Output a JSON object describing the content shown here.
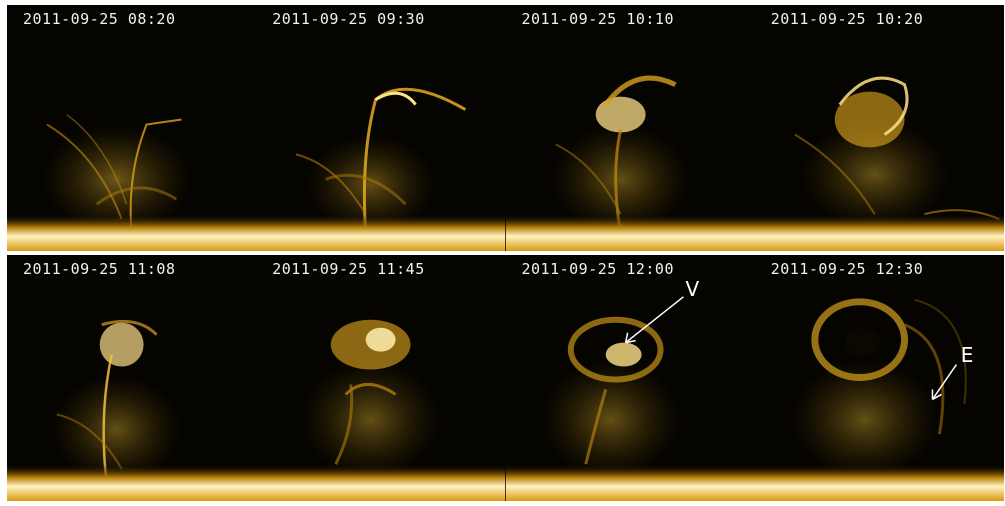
{
  "panels": [
    {
      "timestamp": "2011-09-25 08:20",
      "label": ""
    },
    {
      "timestamp": "2011-09-25 09:30",
      "label": ""
    },
    {
      "timestamp": "2011-09-25 10:10",
      "label": ""
    },
    {
      "timestamp": "2011-09-25 10:20",
      "label": ""
    },
    {
      "timestamp": "2011-09-25 11:08",
      "label": ""
    },
    {
      "timestamp": "2011-09-25 11:45",
      "label": ""
    },
    {
      "timestamp": "2011-09-25 12:00",
      "label": "V"
    },
    {
      "timestamp": "2011-09-25 12:30",
      "label": "E"
    }
  ],
  "colors": {
    "background": "#050400",
    "limb_bright": "#fff6c8",
    "plasma": "#e0a414",
    "plasma_dim": "#7a5506",
    "text": "#f2f2f2"
  },
  "icons": [
    "arrow-pointer-icon"
  ]
}
